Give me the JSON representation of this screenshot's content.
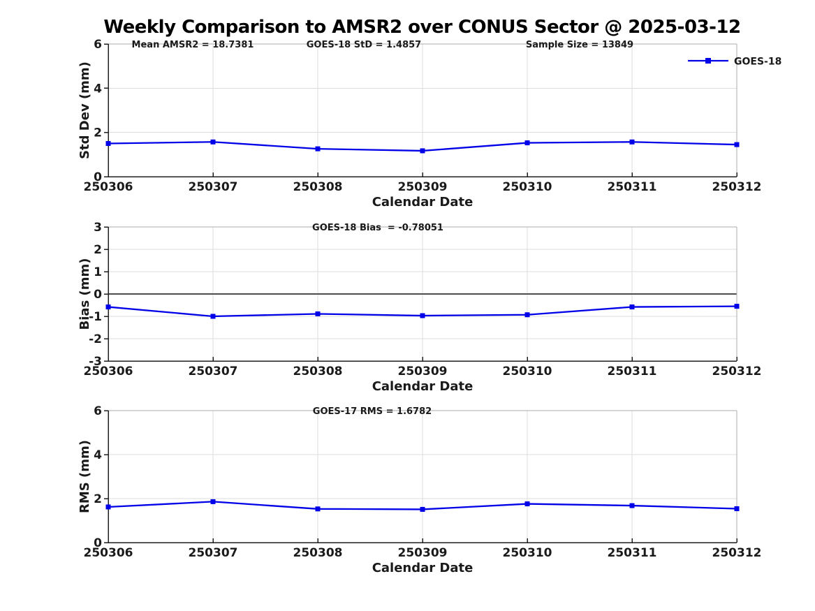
{
  "title": "Weekly Comparison to AMSR2 over CONUS Sector @ 2025-03-12",
  "legend": {
    "label": "GOES-18",
    "position": "top-right"
  },
  "colors": {
    "line": "#0000E8",
    "grid": "#DEDEDE",
    "axis": "#1F1F1F",
    "box": "#ABABAB",
    "zero_line": "#4D4D4D",
    "tick_text": "#1A1A1A",
    "title_text": "#000000"
  },
  "chart_data": [
    {
      "type": "line",
      "id": "std-dev",
      "annotations": [
        "Mean AMSR2 = 18.7381",
        "GOES-18 StD = 1.4857",
        "Sample Size = 13849"
      ],
      "categories": [
        "250306",
        "250307",
        "250308",
        "250309",
        "250310",
        "250311",
        "250312"
      ],
      "series": [
        {
          "name": "GOES-18",
          "values": [
            1.5,
            1.57,
            1.26,
            1.17,
            1.53,
            1.57,
            1.45
          ]
        }
      ],
      "xlabel": "Calendar Date",
      "ylabel": "Std Dev (mm)",
      "ylim": [
        0,
        6
      ],
      "yticks": [
        0,
        2,
        4,
        6
      ],
      "grid": true,
      "zero_line": false,
      "legend": "GOES-18"
    },
    {
      "type": "line",
      "id": "bias",
      "annotations": [
        "GOES-18 Bias  = -0.78051"
      ],
      "categories": [
        "250306",
        "250307",
        "250308",
        "250309",
        "250310",
        "250311",
        "250312"
      ],
      "series": [
        {
          "name": "GOES-18",
          "values": [
            -0.58,
            -1.0,
            -0.89,
            -0.97,
            -0.93,
            -0.58,
            -0.55
          ]
        }
      ],
      "xlabel": "Calendar Date",
      "ylabel": "Bias (mm)",
      "ylim": [
        -3,
        3
      ],
      "yticks": [
        -3,
        -2,
        -1,
        0,
        1,
        2,
        3
      ],
      "grid": true,
      "zero_line": true,
      "legend": null
    },
    {
      "type": "line",
      "id": "rms",
      "annotations": [
        "GOES-17 RMS = 1.6782"
      ],
      "categories": [
        "250306",
        "250307",
        "250308",
        "250309",
        "250310",
        "250311",
        "250312"
      ],
      "series": [
        {
          "name": "GOES-18",
          "values": [
            1.62,
            1.86,
            1.53,
            1.51,
            1.76,
            1.68,
            1.54
          ]
        }
      ],
      "xlabel": "Calendar Date",
      "ylabel": "RMS (mm)",
      "ylim": [
        0,
        6
      ],
      "yticks": [
        0,
        2,
        4,
        6
      ],
      "grid": true,
      "zero_line": false,
      "legend": null
    }
  ]
}
